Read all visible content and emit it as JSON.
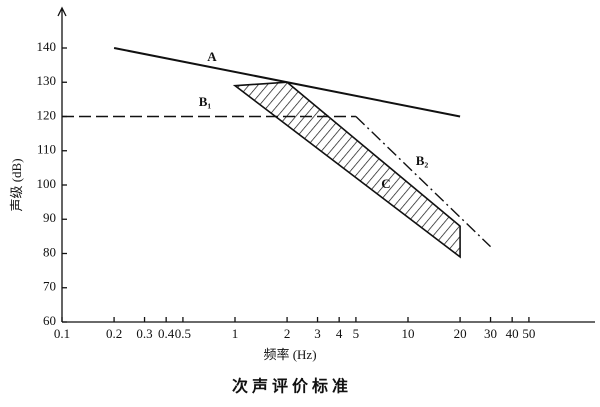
{
  "chart_data": {
    "type": "line",
    "title": "次 声 评 价 标 准",
    "x_label": "频率 (Hz)",
    "y_label": "声级 (dB)",
    "x_scale": "log",
    "xlim": [
      0.1,
      100
    ],
    "ylim": [
      60,
      150
    ],
    "xticks": [
      0.1,
      0.2,
      0.3,
      0.4,
      0.5,
      1,
      2,
      3,
      4,
      5,
      10,
      20,
      30,
      40,
      50
    ],
    "yticks": [
      60,
      70,
      80,
      90,
      100,
      110,
      120,
      130,
      140
    ],
    "grid": false,
    "series": [
      {
        "name": "A",
        "color": "#111111",
        "style": "solid",
        "x": [
          0.2,
          20
        ],
        "values": [
          140,
          120
        ]
      },
      {
        "name": "B₁",
        "color": "#111111",
        "style": "dashed",
        "x": [
          0.1,
          5
        ],
        "values": [
          120,
          120
        ]
      },
      {
        "name": "B₂",
        "color": "#111111",
        "style": "dashdot",
        "x": [
          5,
          30
        ],
        "values": [
          120,
          82
        ]
      },
      {
        "name": "C",
        "color": "#111111",
        "style": "hatched",
        "x": [
          1,
          2,
          20,
          20
        ],
        "values": [
          129,
          130,
          88,
          79
        ]
      }
    ]
  }
}
